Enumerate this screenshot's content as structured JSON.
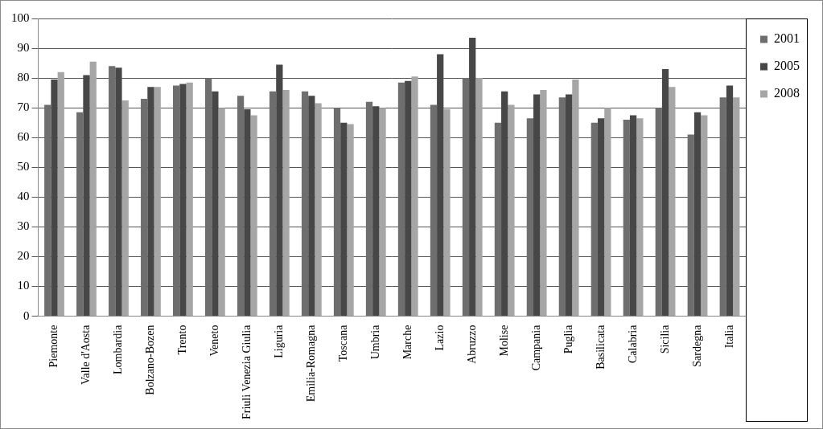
{
  "chart_data": {
    "type": "bar",
    "categories": [
      "Piemonte",
      "Valle d'Aosta",
      "Lombardia",
      "Bolzano-Bozen",
      "Trento",
      "Veneto",
      "Friuli Venezia Giulia",
      "Liguria",
      "Emilia-Romagna",
      "Toscana",
      "Umbria",
      "Marche",
      "Lazio",
      "Abruzzo",
      "Molise",
      "Campania",
      "Puglia",
      "Basilicata",
      "Calabria",
      "Sicilia",
      "Sardegna",
      "Italia"
    ],
    "series": [
      {
        "name": "2001",
        "color": "#6e6e6e",
        "values": [
          71,
          68.5,
          84,
          73,
          77.5,
          80,
          74,
          75.5,
          75.5,
          70,
          72,
          78.5,
          71,
          80,
          65,
          66.5,
          73.5,
          65,
          66,
          70,
          61,
          73.5
        ]
      },
      {
        "name": "2005",
        "color": "#474747",
        "values": [
          79.5,
          81,
          83.5,
          77,
          78,
          75.5,
          69.5,
          84.5,
          74,
          65,
          70.5,
          79,
          88,
          93.5,
          75.5,
          74.5,
          74.5,
          66.5,
          67.5,
          83,
          68.5,
          77.5
        ]
      },
      {
        "name": "2008",
        "color": "#a6a6a6",
        "values": [
          82,
          85.5,
          72.5,
          77,
          78.5,
          70,
          67.5,
          76,
          71.5,
          64.5,
          70,
          80.5,
          69.5,
          80,
          71,
          76,
          79.5,
          70,
          66.5,
          77,
          67.5,
          73.5
        ]
      }
    ],
    "ylim": [
      0,
      100
    ],
    "yticks": [
      0,
      10,
      20,
      30,
      40,
      50,
      60,
      70,
      80,
      90,
      100
    ],
    "grid": true,
    "legend": "right"
  }
}
